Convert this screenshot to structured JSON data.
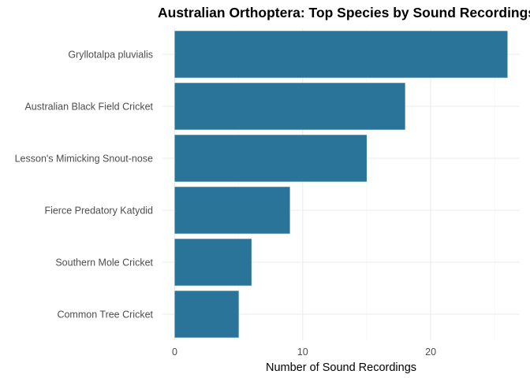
{
  "chart_data": {
    "type": "bar",
    "orientation": "horizontal",
    "title": "Australian Orthoptera: Top Species by Sound Recordings",
    "xlabel": "Number of Sound Recordings",
    "ylabel": "",
    "categories": [
      "Gryllotalpa pluvialis",
      "Australian Black Field Cricket",
      "Lesson's Mimicking Snout-nose",
      "Fierce Predatory Katydid",
      "Southern Mole Cricket",
      "Common Tree Cricket"
    ],
    "values": [
      26,
      18,
      15,
      9,
      6,
      5
    ],
    "xlim": [
      0,
      26
    ],
    "x_ticks": [
      0,
      10,
      20
    ],
    "x_tick_labels": [
      "0",
      "10",
      "20"
    ],
    "grid": true,
    "legend": "none",
    "bar_color": "#2B7499"
  }
}
